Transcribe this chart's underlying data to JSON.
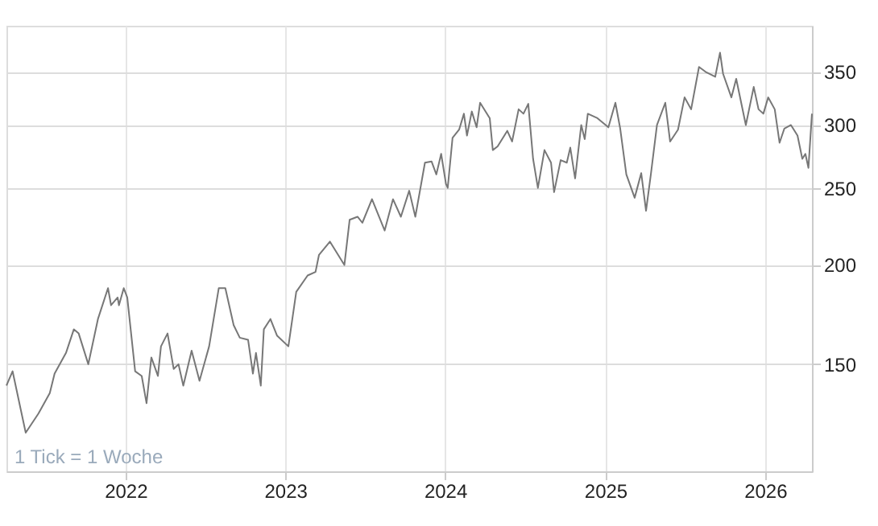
{
  "chart_data": {
    "type": "line",
    "log": "y",
    "grid": true,
    "tick_labels": true,
    "annotations": [
      "1 Tick = 1 Woche"
    ],
    "xlim": [
      "2021-04-04",
      "2026-04-18"
    ],
    "xticks": [
      {
        "value": "2022",
        "label": "2022"
      },
      {
        "value": "2023",
        "label": "2023"
      },
      {
        "value": "2024",
        "label": "2024"
      },
      {
        "value": "2025",
        "label": "2025"
      },
      {
        "value": "2026",
        "label": "2026"
      }
    ],
    "ylim": [
      110,
      400
    ],
    "yticks": [
      150,
      200,
      250,
      300,
      350
    ],
    "x": [
      "2021-04-04",
      "2021-04-18",
      "2021-05-18",
      "2021-06-16",
      "2021-07-12",
      "2021-07-23",
      "2021-08-18",
      "2021-09-05",
      "2021-09-16",
      "2021-10-08",
      "2021-10-30",
      "2021-11-22",
      "2021-11-29",
      "2021-12-14",
      "2021-12-17",
      "2021-12-28",
      "2022-01-05",
      "2022-01-23",
      "2022-02-07",
      "2022-02-18",
      "2022-03-01",
      "2022-03-16",
      "2022-03-23",
      "2022-04-07",
      "2022-04-21",
      "2022-05-02",
      "2022-05-13",
      "2022-06-01",
      "2022-06-19",
      "2022-07-11",
      "2022-08-02",
      "2022-08-17",
      "2022-09-05",
      "2022-09-19",
      "2022-10-08",
      "2022-10-19",
      "2022-10-26",
      "2022-11-06",
      "2022-11-13",
      "2022-11-28",
      "2022-12-13",
      "2023-01-08",
      "2023-01-26",
      "2023-02-21",
      "2023-03-11",
      "2023-03-19",
      "2023-04-13",
      "2023-05-16",
      "2023-05-28",
      "2023-06-15",
      "2023-06-26",
      "2023-07-18",
      "2023-08-16",
      "2023-09-04",
      "2023-09-22",
      "2023-10-11",
      "2023-10-25",
      "2023-11-16",
      "2023-12-01",
      "2023-12-12",
      "2023-12-23",
      "2024-01-03",
      "2024-01-07",
      "2024-01-18",
      "2024-02-02",
      "2024-02-13",
      "2024-02-20",
      "2024-03-02",
      "2024-03-13",
      "2024-03-21",
      "2024-04-12",
      "2024-04-19",
      "2024-04-30",
      "2024-05-22",
      "2024-06-02",
      "2024-06-17",
      "2024-06-28",
      "2024-07-09",
      "2024-07-20",
      "2024-07-31",
      "2024-08-15",
      "2024-08-30",
      "2024-09-06",
      "2024-09-21",
      "2024-10-05",
      "2024-10-13",
      "2024-10-24",
      "2024-11-07",
      "2024-11-15",
      "2024-11-22",
      "2024-12-14",
      "2025-01-08",
      "2025-01-24",
      "2025-02-04",
      "2025-02-18",
      "2025-03-09",
      "2025-03-24",
      "2025-04-04",
      "2025-04-15",
      "2025-04-29",
      "2025-05-18",
      "2025-05-29",
      "2025-06-16",
      "2025-07-01",
      "2025-07-16",
      "2025-08-03",
      "2025-08-18",
      "2025-09-09",
      "2025-09-20",
      "2025-09-27",
      "2025-10-16",
      "2025-10-27",
      "2025-11-18",
      "2025-12-06",
      "2025-12-17",
      "2025-12-28",
      "2026-01-08",
      "2026-01-23",
      "2026-02-03",
      "2026-02-14",
      "2026-03-01",
      "2026-03-16",
      "2026-03-27",
      "2026-04-03",
      "2026-04-10",
      "2026-04-18"
    ],
    "series": [
      {
        "color": "#777777",
        "values": [
          141,
          147,
          123,
          130,
          138,
          146,
          155,
          166,
          164,
          150,
          171,
          187,
          178,
          182,
          178,
          187,
          182,
          147,
          145,
          134,
          153,
          145,
          158,
          164,
          148,
          150,
          141,
          156,
          143,
          158,
          187,
          187,
          168,
          162,
          161,
          146,
          155,
          141,
          166,
          171,
          163,
          158,
          185,
          194,
          196,
          206,
          214,
          200,
          228,
          230,
          226,
          242,
          221,
          242,
          230,
          248,
          230,
          269,
          270,
          260,
          276,
          253,
          250,
          289,
          296,
          310,
          291,
          312,
          298,
          320,
          306,
          279,
          282,
          295,
          286,
          314,
          310,
          319,
          272,
          250,
          279,
          269,
          247,
          271,
          269,
          281,
          257,
          300,
          288,
          310,
          306,
          298,
          320,
          297,
          260,
          243,
          261,
          234,
          260,
          300,
          320,
          286,
          296,
          325,
          314,
          355,
          350,
          345,
          370,
          348,
          325,
          343,
          300,
          335,
          314,
          310,
          325,
          314,
          285,
          297,
          300,
          291,
          272,
          276,
          265,
          310
        ]
      }
    ]
  }
}
